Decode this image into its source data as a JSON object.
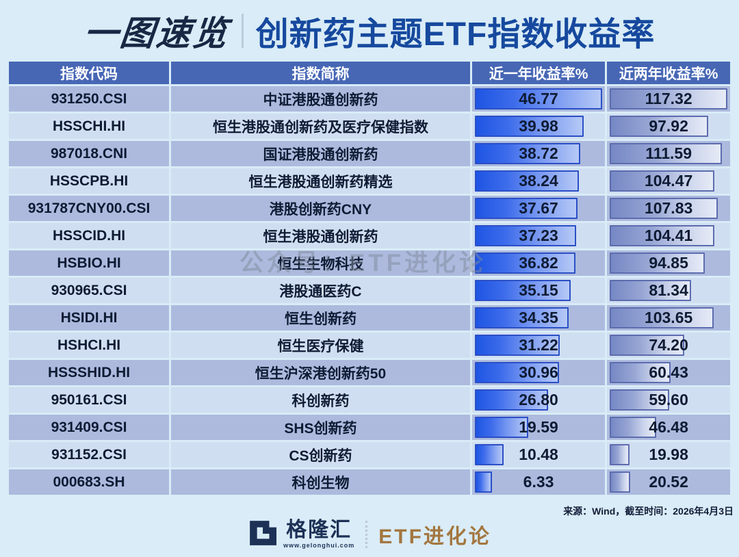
{
  "title": {
    "badge": "一图速览",
    "main": "创新药主题ETF指数收益率"
  },
  "watermark": "公众号：ETF进化论",
  "source_note": "来源：Wind，截至时间：2026年4月3日",
  "footer": {
    "brand_logo": "G-logo",
    "brand": "格隆汇",
    "brand_url": "www.gelonghui.com",
    "channel": "ETF进化论"
  },
  "colors": {
    "page_bg": "#d9ecf7",
    "title_badge": "#182743",
    "title_main": "#16499e",
    "header_bg": "#4767b5",
    "row_dark": "#adbade",
    "row_light": "#d0def1",
    "bar_year1_start": "#1e55e3",
    "bar_year1_end": "#b6c9f6",
    "bar_year1_border": "#2a4fc5",
    "bar_year2_start": "#7688c5",
    "bar_year2_end": "#e7ebf7",
    "bar_year2_border": "#5c6cae",
    "channel_text": "#a3763f"
  },
  "chart_data": {
    "type": "table",
    "columns": [
      "指数代码",
      "指数简称",
      "近一年收益率%",
      "近两年收益率%"
    ],
    "bar_scale": {
      "year1_max": 46.77,
      "year2_max": 117.32
    },
    "rows": [
      [
        "931250.CSI",
        "中证港股通创新药",
        46.77,
        117.32
      ],
      [
        "HSSCHI.HI",
        "恒生港股通创新药及医疗保健指数",
        39.98,
        97.92
      ],
      [
        "987018.CNI",
        "国证港股通创新药",
        38.72,
        111.59
      ],
      [
        "HSSCPB.HI",
        "恒生港股通创新药精选",
        38.24,
        104.47
      ],
      [
        "931787CNY00.CSI",
        "港股创新药CNY",
        37.67,
        107.83
      ],
      [
        "HSSCID.HI",
        "恒生港股通创新药",
        37.23,
        104.41
      ],
      [
        "HSBIO.HI",
        "恒生生物科技",
        36.82,
        94.85
      ],
      [
        "930965.CSI",
        "港股通医药C",
        35.15,
        81.34
      ],
      [
        "HSIDI.HI",
        "恒生创新药",
        34.35,
        103.65
      ],
      [
        "HSHCI.HI",
        "恒生医疗保健",
        31.22,
        74.2
      ],
      [
        "HSSSHID.HI",
        "恒生沪深港创新药50",
        30.96,
        60.43
      ],
      [
        "950161.CSI",
        "科创新药",
        26.8,
        59.6
      ],
      [
        "931409.CSI",
        "SHS创新药",
        19.59,
        46.48
      ],
      [
        "931152.CSI",
        "CS创新药",
        10.48,
        19.98
      ],
      [
        "000683.SH",
        "科创生物",
        6.33,
        20.52
      ]
    ]
  }
}
